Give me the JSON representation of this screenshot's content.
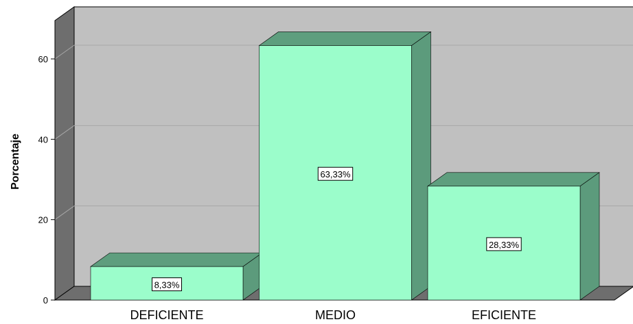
{
  "chart_data": {
    "type": "bar",
    "three_d": true,
    "categories": [
      "DEFICIENTE",
      "MEDIO",
      "EFICIENTE"
    ],
    "values": [
      8.33,
      63.33,
      28.33
    ],
    "data_labels": [
      "8,33%",
      "63,33%",
      "28,33%"
    ],
    "ylabel": "Porcentaje",
    "xlabel": "",
    "ylim": [
      0,
      75
    ],
    "yticks": [
      0,
      20,
      40,
      60
    ],
    "ytick_labels": [
      "0",
      "20",
      "40",
      "60"
    ],
    "grid": true,
    "legend": "none"
  },
  "colors": {
    "bar_front": "#9bfdcb",
    "bar_side": "#5c9b7c",
    "bar_top": "#5e9e7e",
    "plot_back": "#c0c0c0",
    "left_wall": "#6e6e6e",
    "floor": "#6e6e6e",
    "gridline": "#a7a7a7"
  }
}
